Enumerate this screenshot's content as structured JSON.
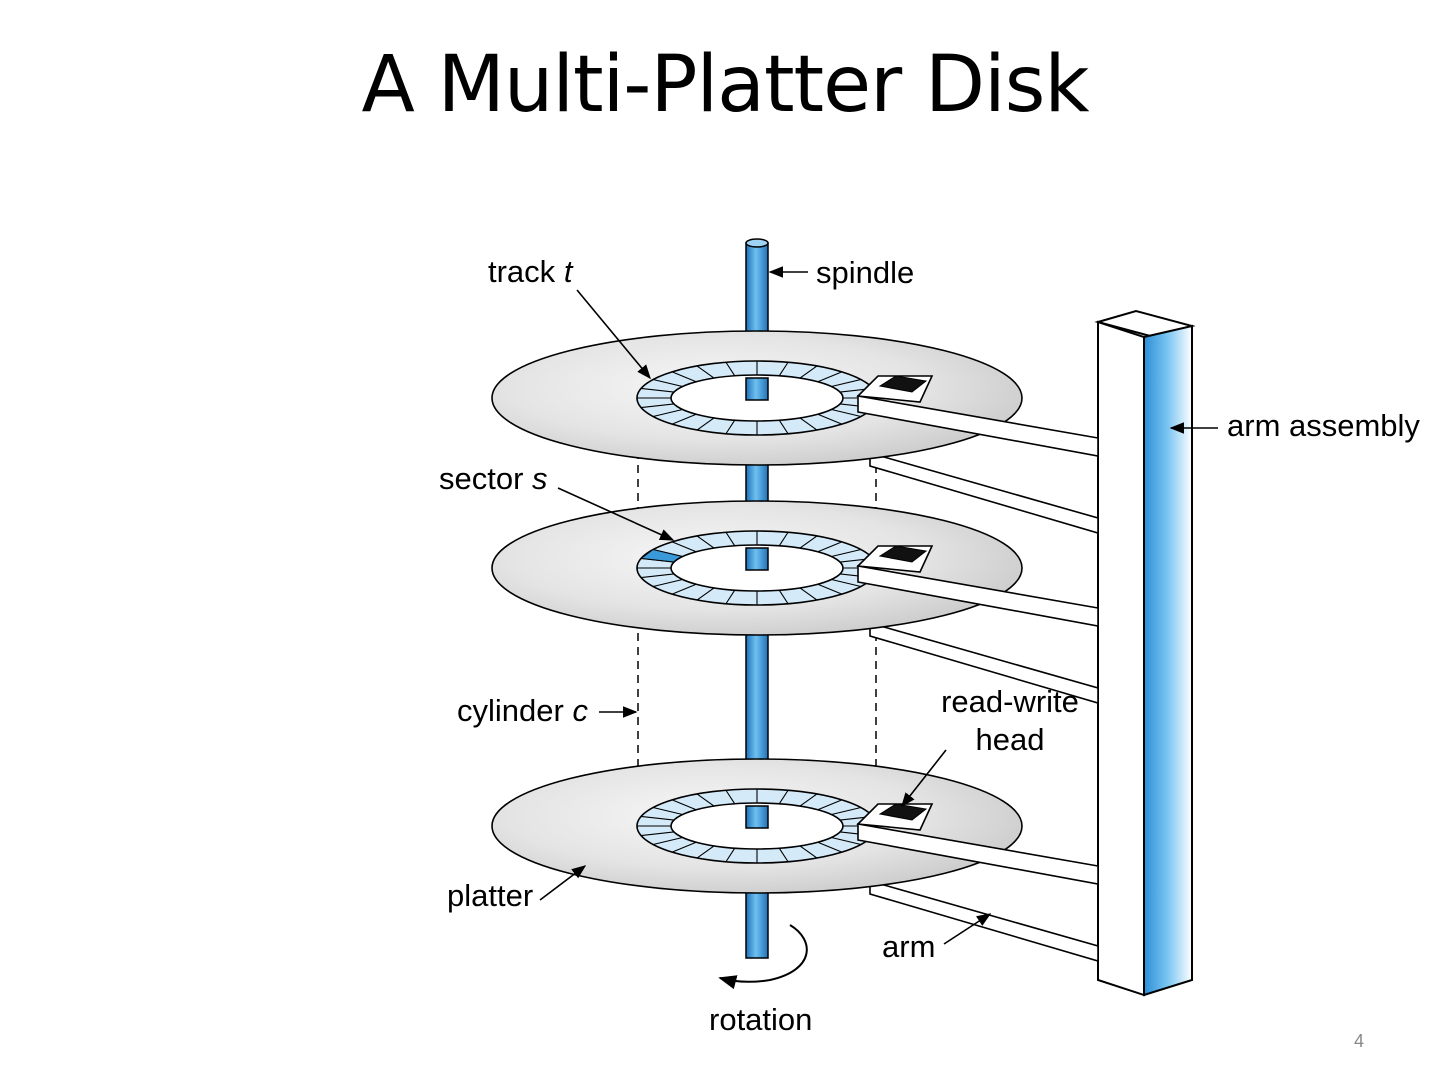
{
  "slide": {
    "title": "A Multi-Platter Disk",
    "page_number": "4"
  },
  "labels": {
    "track": "track",
    "track_var": "t",
    "spindle": "spindle",
    "arm_assembly": "arm assembly",
    "sector": "sector",
    "sector_var": "s",
    "cylinder": "cylinder",
    "cylinder_var": "c",
    "read_write_line1": "read-write",
    "read_write_line2": "head",
    "platter": "platter",
    "arm": "arm",
    "rotation": "rotation"
  },
  "colors": {
    "spindle_blue": "#3a9ad9",
    "track_fill": "#d4eaf8",
    "sector_highlight": "#3a9ad9",
    "platter_gray": "#e6e6e6",
    "head_black": "#111111"
  }
}
